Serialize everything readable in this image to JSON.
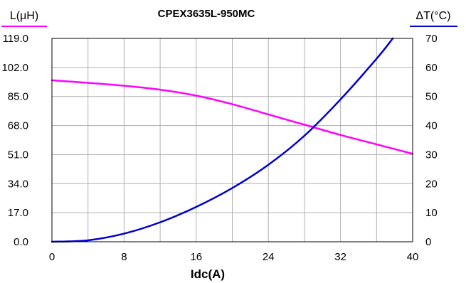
{
  "chart_data": {
    "type": "line",
    "title": "CPEX3635L-950MC",
    "xlabel": "Idc(A)",
    "ylabel_left": "L(μH)",
    "ylabel_right": "ΔT(°C)",
    "xlim": [
      0,
      40
    ],
    "ylim_left": [
      0,
      119
    ],
    "ylim_right": [
      0,
      70
    ],
    "x_ticks": [
      "0",
      "8",
      "16",
      "24",
      "32",
      "40"
    ],
    "y_left_ticks": [
      "0.0",
      "17.0",
      "34.0",
      "51.0",
      "68.0",
      "85.0",
      "102.0",
      "119.0"
    ],
    "y_right_ticks": [
      "0",
      "10",
      "20",
      "30",
      "40",
      "50",
      "60",
      "70"
    ],
    "grid": true,
    "series": [
      {
        "name": "L(μH)",
        "axis": "left",
        "color": "#ff00ff",
        "x": [
          0,
          4,
          8,
          12,
          16,
          20,
          24,
          28,
          32,
          36,
          40
        ],
        "y": [
          94.5,
          93.0,
          91.3,
          89.0,
          85.5,
          80.5,
          74.5,
          68.5,
          62.5,
          57.0,
          51.5
        ]
      },
      {
        "name": "ΔT(°C)",
        "axis": "right",
        "color": "#0000cc",
        "x": [
          0,
          4,
          8,
          12,
          16,
          20,
          24,
          28,
          32,
          36,
          37.8
        ],
        "y": [
          0,
          0.5,
          2.8,
          6.7,
          12.0,
          18.5,
          26.5,
          36.5,
          49.0,
          63.0,
          70.0
        ]
      }
    ]
  }
}
